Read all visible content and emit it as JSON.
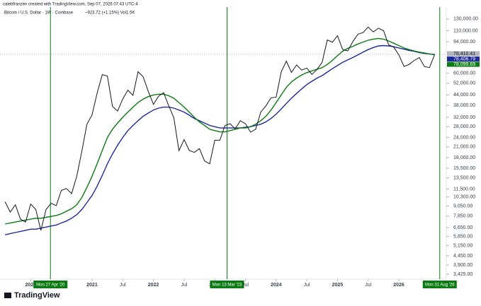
{
  "chart_data": {
    "type": "line",
    "header": "calebfranzen created with TradingView.com, Sep 07, 2026 07:43 UTC-4",
    "title": "Bitcoin / U.S. Dollar · 1W · Coinbase",
    "subtitle": "~923.72 (+1.15%)  Vol1.5K",
    "footer": "TradingView",
    "log_scale": true,
    "xlim": [
      "2019-07",
      "2026-10"
    ],
    "ylim": [
      3190,
      154000
    ],
    "x": [
      "2019-08",
      "2019-09",
      "2019-10",
      "2019-11",
      "2019-12",
      "2020-01",
      "2020-02",
      "2020-03",
      "2020-04",
      "2020-05",
      "2020-06",
      "2020-07",
      "2020-08",
      "2020-09",
      "2020-10",
      "2020-11",
      "2020-12",
      "2021-01",
      "2021-02",
      "2021-03",
      "2021-04",
      "2021-05",
      "2021-06",
      "2021-07",
      "2021-08",
      "2021-09",
      "2021-10",
      "2021-11",
      "2021-12",
      "2022-01",
      "2022-02",
      "2022-03",
      "2022-04",
      "2022-05",
      "2022-06",
      "2022-07",
      "2022-08",
      "2022-09",
      "2022-10",
      "2022-11",
      "2022-12",
      "2023-01",
      "2023-02",
      "2023-03",
      "2023-04",
      "2023-05",
      "2023-06",
      "2023-07",
      "2023-08",
      "2023-09",
      "2023-10",
      "2023-11",
      "2023-12",
      "2024-01",
      "2024-02",
      "2024-03",
      "2024-04",
      "2024-05",
      "2024-06",
      "2024-07",
      "2024-08",
      "2024-09",
      "2024-10",
      "2024-11",
      "2024-12",
      "2025-01",
      "2025-02",
      "2025-03",
      "2025-04",
      "2025-05",
      "2025-06",
      "2025-07",
      "2025-08",
      "2025-09",
      "2025-10",
      "2025-11",
      "2025-12",
      "2026-01",
      "2026-02",
      "2026-03",
      "2026-04",
      "2026-05",
      "2026-06",
      "2026-07",
      "2026-08"
    ],
    "series": [
      {
        "name": "Bitcoin / U.S. Dollar",
        "color": "#131722",
        "label": "78,410.41",
        "label_color": "#b2b5be",
        "values": [
          9600,
          8300,
          9200,
          7500,
          7200,
          9300,
          8600,
          6400,
          8600,
          9400,
          9100,
          11300,
          11600,
          10800,
          13800,
          19700,
          29000,
          33100,
          45200,
          58800,
          57700,
          37300,
          35000,
          41500,
          47100,
          43800,
          61300,
          57000,
          46300,
          38500,
          43200,
          45500,
          37700,
          31800,
          19900,
          23300,
          20000,
          19400,
          20500,
          17200,
          16500,
          23100,
          23100,
          28500,
          29200,
          27200,
          30500,
          29200,
          25900,
          27000,
          34500,
          37700,
          42300,
          42600,
          61200,
          71300,
          60700,
          67500,
          62700,
          64600,
          59000,
          63300,
          70200,
          96400,
          93400,
          102400,
          84300,
          82500,
          94200,
          104600,
          107100,
          115800,
          108200,
          114000,
          110000,
          90000,
          87000,
          78000,
          66000,
          68000,
          72000,
          75000,
          66000,
          65000,
          78410.41
        ]
      },
      {
        "name": "MA 1",
        "color": "#1e2a9c",
        "label": "78,406.79",
        "label_color": "#1e2a9c",
        "values": [
          6000,
          6100,
          6200,
          6300,
          6400,
          6500,
          6500,
          6600,
          6700,
          6800,
          6900,
          7100,
          7300,
          7600,
          8000,
          8600,
          9500,
          10500,
          12000,
          14000,
          16500,
          19000,
          21500,
          24000,
          26500,
          28500,
          30500,
          32500,
          34000,
          35500,
          36500,
          37000,
          37000,
          36500,
          35500,
          34500,
          33000,
          31500,
          30500,
          29500,
          28500,
          28000,
          27500,
          27500,
          27500,
          27500,
          27500,
          27800,
          28000,
          28500,
          29000,
          30000,
          31500,
          33500,
          36000,
          39000,
          42000,
          45000,
          48000,
          51000,
          53500,
          56000,
          58000,
          61000,
          64000,
          67000,
          70000,
          72500,
          75000,
          78000,
          81000,
          84000,
          86500,
          88500,
          89000,
          88500,
          87500,
          86000,
          84500,
          83000,
          82000,
          80500,
          79500,
          79000,
          78406.79
        ]
      },
      {
        "name": "MA 2",
        "color": "#0b7a12",
        "label": "78,099.69",
        "label_color": "#0b7a12",
        "values": [
          7000,
          7100,
          7200,
          7300,
          7400,
          7500,
          7600,
          7600,
          7700,
          7800,
          7900,
          8100,
          8400,
          8700,
          9200,
          10200,
          11800,
          13800,
          16500,
          20000,
          24000,
          27000,
          29500,
          32000,
          34500,
          37000,
          39500,
          41500,
          43000,
          44000,
          44500,
          44500,
          43500,
          42000,
          39500,
          37000,
          34500,
          32000,
          30000,
          28500,
          27000,
          26500,
          26000,
          26000,
          26500,
          27000,
          27500,
          27500,
          28000,
          29000,
          30500,
          32500,
          35500,
          39500,
          44000,
          49000,
          53000,
          56000,
          58500,
          60500,
          62000,
          63500,
          65000,
          68000,
          72000,
          77000,
          82000,
          85500,
          88000,
          91000,
          93500,
          96000,
          97500,
          98500,
          97500,
          95000,
          92000,
          89000,
          86000,
          84000,
          82500,
          81000,
          80000,
          79000,
          78099.69
        ]
      }
    ],
    "markers": [
      {
        "x": "2020-04-27",
        "label": "Mon 27 Apr '20"
      },
      {
        "x": "2023-03-13",
        "label": "Mon 13 Mar '23"
      },
      {
        "x": "2026-08-31",
        "label": "Mon 31 Aug '26"
      }
    ],
    "marker_color": "#0b7a12",
    "xticks": [
      {
        "value": "2020-01",
        "label": "2020"
      },
      {
        "value": "2021-01",
        "label": "2021"
      },
      {
        "value": "2021-07",
        "label": "Jul"
      },
      {
        "value": "2022-01",
        "label": "2022"
      },
      {
        "value": "2022-07",
        "label": "Jul"
      },
      {
        "value": "2023-01",
        "label": "2023"
      },
      {
        "value": "2023-07",
        "label": "Jul"
      },
      {
        "value": "2024-01",
        "label": "2024"
      },
      {
        "value": "2024-07",
        "label": "Jul"
      },
      {
        "value": "2025-01",
        "label": "2025"
      },
      {
        "value": "2025-07",
        "label": "Jul"
      },
      {
        "value": "2026-01",
        "label": "2026"
      }
    ],
    "yticks": [
      {
        "value": 130000,
        "label": "130,000.00"
      },
      {
        "value": 110000,
        "label": "110,000.00"
      },
      {
        "value": 94000,
        "label": "94,000.00"
      },
      {
        "value": 60000,
        "label": "60,000.00"
      },
      {
        "value": 52000,
        "label": "52,000.00"
      },
      {
        "value": 44000,
        "label": "44,000.00"
      },
      {
        "value": 38000,
        "label": "38,000.00"
      },
      {
        "value": 32000,
        "label": "32,000.00"
      },
      {
        "value": 28000,
        "label": "28,000.00"
      },
      {
        "value": 24000,
        "label": "24,000.00"
      },
      {
        "value": 21000,
        "label": "21,000.00"
      },
      {
        "value": 18000,
        "label": "18,000.00"
      },
      {
        "value": 15500,
        "label": "15,500.00"
      },
      {
        "value": 13500,
        "label": "13,500.00"
      },
      {
        "value": 11500,
        "label": "11,500.00"
      },
      {
        "value": 10300,
        "label": "10,300.00"
      },
      {
        "value": 9050,
        "label": "9,050.00"
      },
      {
        "value": 7850,
        "label": "7,850.00"
      },
      {
        "value": 6650,
        "label": "6,650.00"
      },
      {
        "value": 5850,
        "label": "5,850.00"
      },
      {
        "value": 5150,
        "label": "5,150.00"
      },
      {
        "value": 4450,
        "label": "4,450.00"
      },
      {
        "value": 3900,
        "label": "3,900.00"
      },
      {
        "value": 3425,
        "label": "3,425.00"
      }
    ]
  }
}
